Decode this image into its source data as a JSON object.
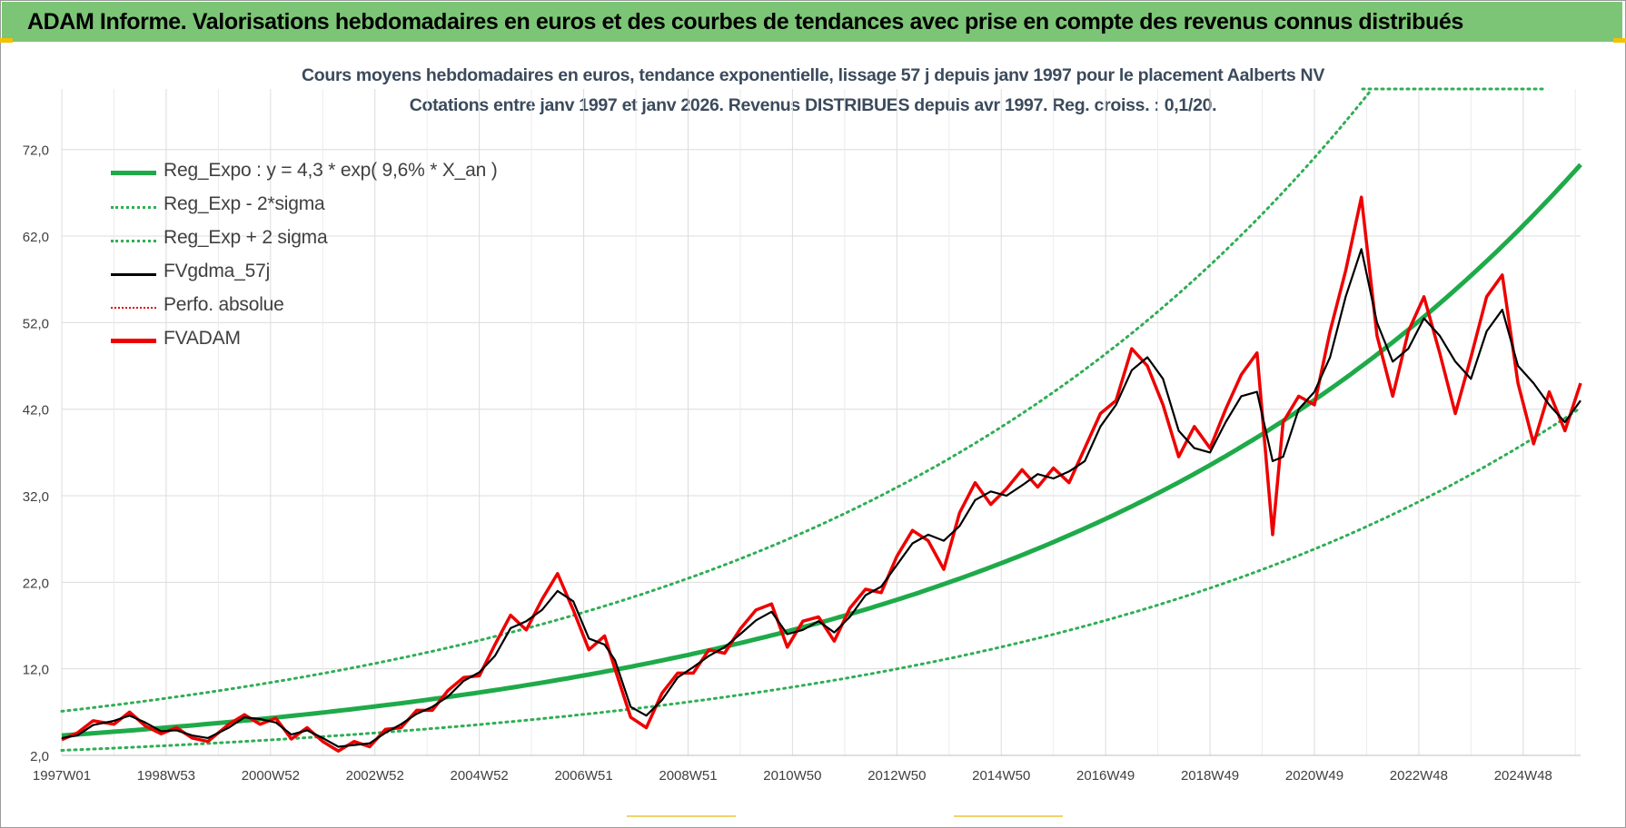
{
  "header": {
    "banner_text": "ADAM Informe. Valorisations hebdomadaires en euros et des courbes de tendances avec prise en compte des revenus connus distribués"
  },
  "chart_data": {
    "type": "line",
    "title": "Cours moyens hebdomadaires en euros, tendance exponentielle, lissage 57 j depuis janv 1997 pour le placement Aalberts NV",
    "subtitle": "Cotations entre janv 1997 et janv 2026. Revenus DISTRIBUES depuis avr 1997. Reg. croiss. : 0,1/20.",
    "xlabel": "",
    "ylabel": "",
    "ylim": [
      2,
      79
    ],
    "xlim": [
      1997.0,
      2026.1
    ],
    "yticks": [
      "72,0",
      "62,0",
      "52,0",
      "42,0",
      "32,0",
      "22,0",
      "12,0",
      "2,0"
    ],
    "ytick_values": [
      72,
      62,
      52,
      42,
      32,
      22,
      12,
      2
    ],
    "xticks": [
      "1997W01",
      "1998W53",
      "2000W52",
      "2002W52",
      "2004W52",
      "2006W51",
      "2008W51",
      "2010W50",
      "2012W50",
      "2014W50",
      "2016W49",
      "2018W49",
      "2020W49",
      "2022W48",
      "2024W48"
    ],
    "xtick_values": [
      1997.0,
      1999.0,
      2001.0,
      2003.0,
      2005.0,
      2007.0,
      2009.0,
      2011.0,
      2013.0,
      2015.0,
      2017.0,
      2019.0,
      2021.0,
      2023.0,
      2025.0
    ],
    "grid": true,
    "legend_position": "top-left",
    "colors": {
      "reg_expo": "#1faa4a",
      "sigma": "#2fae55",
      "fvgdma": "#000000",
      "perfo": "#e00000",
      "fvadam": "#ee0000",
      "axis_text": "#404040",
      "grid": "#dcdcdc",
      "banner": "#7cc576"
    },
    "regression": {
      "a": 4.3,
      "growth": 0.096,
      "x0": 1997.0
    },
    "series": [
      {
        "name": "Reg_Expo : y = 4,3 * exp( 9,6% *  X_an )",
        "style": "solid-thick",
        "key": "reg_expo"
      },
      {
        "name": "Reg_Exp - 2*sigma",
        "style": "dotted",
        "key": "lower"
      },
      {
        "name": "Reg_Exp + 2 sigma",
        "style": "dotted",
        "key": "upper"
      },
      {
        "name": "FVgdma_57j",
        "style": "solid",
        "key": "fvgdma",
        "x": [
          1997.0,
          1997.3,
          1997.6,
          1998.0,
          1998.3,
          1998.6,
          1998.9,
          1999.2,
          1999.5,
          1999.8,
          2000.2,
          2000.5,
          2000.8,
          2001.1,
          2001.4,
          2001.7,
          2002.0,
          2002.3,
          2002.6,
          2002.9,
          2003.2,
          2003.5,
          2003.8,
          2004.1,
          2004.4,
          2004.7,
          2005.0,
          2005.3,
          2005.6,
          2005.9,
          2006.2,
          2006.5,
          2006.8,
          2007.1,
          2007.4,
          2007.6,
          2007.9,
          2008.2,
          2008.5,
          2008.8,
          2009.1,
          2009.4,
          2009.7,
          2010.0,
          2010.3,
          2010.6,
          2010.9,
          2011.2,
          2011.5,
          2011.8,
          2012.1,
          2012.4,
          2012.7,
          2013.0,
          2013.3,
          2013.6,
          2013.9,
          2014.2,
          2014.5,
          2014.8,
          2015.1,
          2015.4,
          2015.7,
          2016.0,
          2016.3,
          2016.6,
          2016.9,
          2017.2,
          2017.5,
          2017.8,
          2018.1,
          2018.4,
          2018.7,
          2019.0,
          2019.3,
          2019.6,
          2019.9,
          2020.2,
          2020.4,
          2020.7,
          2021.0,
          2021.3,
          2021.6,
          2021.9,
          2022.2,
          2022.5,
          2022.8,
          2023.1,
          2023.4,
          2023.7,
          2024.0,
          2024.3,
          2024.6,
          2024.9,
          2025.2,
          2025.5,
          2025.8,
          2026.1
        ],
        "values": [
          4.0,
          4.3,
          5.5,
          6.0,
          6.6,
          5.8,
          4.8,
          4.9,
          4.3,
          4.0,
          5.2,
          6.4,
          6.2,
          5.8,
          4.4,
          4.9,
          4.0,
          3.0,
          3.2,
          3.4,
          4.6,
          5.6,
          6.8,
          7.6,
          8.8,
          10.6,
          11.6,
          13.5,
          16.7,
          17.5,
          18.8,
          21.0,
          19.8,
          15.5,
          14.8,
          13.0,
          7.6,
          6.6,
          8.4,
          11.0,
          12.2,
          13.5,
          14.5,
          16.0,
          17.6,
          18.6,
          16.0,
          16.5,
          17.5,
          16.2,
          18.0,
          20.5,
          21.5,
          24.0,
          26.5,
          27.5,
          26.8,
          28.5,
          31.5,
          32.5,
          32.0,
          33.2,
          34.5,
          34.0,
          34.8,
          36.0,
          40.0,
          42.5,
          46.5,
          48.0,
          45.5,
          39.5,
          37.5,
          37.0,
          40.5,
          43.5,
          44.0,
          36.0,
          36.5,
          42.0,
          44.0,
          48.0,
          55.0,
          60.5,
          52.0,
          47.5,
          49.0,
          52.5,
          50.5,
          47.5,
          45.5,
          51.0,
          53.5,
          47.0,
          45.0,
          42.5,
          40.5,
          43.0
        ]
      },
      {
        "name": "Perfo. absolue",
        "style": "dotted",
        "key": "perfo"
      },
      {
        "name": "FVADAM",
        "style": "solid-thick",
        "key": "fvadam",
        "x": [
          1997.0,
          1997.3,
          1997.6,
          1998.0,
          1998.3,
          1998.6,
          1998.9,
          1999.2,
          1999.5,
          1999.8,
          2000.2,
          2000.5,
          2000.8,
          2001.1,
          2001.4,
          2001.7,
          2002.0,
          2002.3,
          2002.6,
          2002.9,
          2003.2,
          2003.5,
          2003.8,
          2004.1,
          2004.4,
          2004.7,
          2005.0,
          2005.3,
          2005.6,
          2005.9,
          2006.2,
          2006.5,
          2006.8,
          2007.1,
          2007.4,
          2007.6,
          2007.9,
          2008.2,
          2008.5,
          2008.8,
          2009.1,
          2009.4,
          2009.7,
          2010.0,
          2010.3,
          2010.6,
          2010.9,
          2011.2,
          2011.5,
          2011.8,
          2012.1,
          2012.4,
          2012.7,
          2013.0,
          2013.3,
          2013.6,
          2013.9,
          2014.2,
          2014.5,
          2014.8,
          2015.1,
          2015.4,
          2015.7,
          2016.0,
          2016.3,
          2016.6,
          2016.9,
          2017.2,
          2017.5,
          2017.8,
          2018.1,
          2018.4,
          2018.7,
          2019.0,
          2019.3,
          2019.6,
          2019.9,
          2020.2,
          2020.4,
          2020.7,
          2021.0,
          2021.3,
          2021.6,
          2021.9,
          2022.2,
          2022.5,
          2022.8,
          2023.1,
          2023.4,
          2023.7,
          2024.0,
          2024.3,
          2024.6,
          2024.9,
          2025.2,
          2025.5,
          2025.8,
          2026.1
        ],
        "values": [
          3.8,
          4.6,
          6.0,
          5.6,
          7.0,
          5.4,
          4.5,
          5.2,
          4.0,
          3.6,
          5.6,
          6.7,
          5.6,
          6.3,
          3.9,
          5.2,
          3.6,
          2.5,
          3.6,
          3.0,
          5.0,
          5.2,
          7.2,
          7.2,
          9.5,
          11.0,
          11.2,
          14.8,
          18.2,
          16.5,
          20.0,
          23.0,
          18.8,
          14.2,
          15.8,
          12.0,
          6.4,
          5.2,
          9.2,
          11.5,
          11.5,
          14.2,
          13.8,
          16.6,
          18.8,
          19.5,
          14.5,
          17.5,
          18.0,
          15.2,
          19.0,
          21.2,
          20.8,
          25.0,
          28.0,
          26.8,
          23.5,
          30.0,
          33.5,
          31.0,
          32.8,
          35.0,
          33.0,
          35.2,
          33.5,
          37.5,
          41.5,
          43.0,
          49.0,
          47.0,
          42.5,
          36.5,
          40.0,
          37.5,
          42.0,
          46.0,
          48.5,
          27.5,
          40.5,
          43.5,
          42.5,
          51.0,
          58.0,
          66.5,
          50.5,
          43.5,
          51.0,
          55.0,
          48.5,
          41.5,
          48.0,
          55.0,
          57.5,
          45.0,
          38.0,
          44.0,
          39.5,
          45.0
        ]
      }
    ]
  }
}
